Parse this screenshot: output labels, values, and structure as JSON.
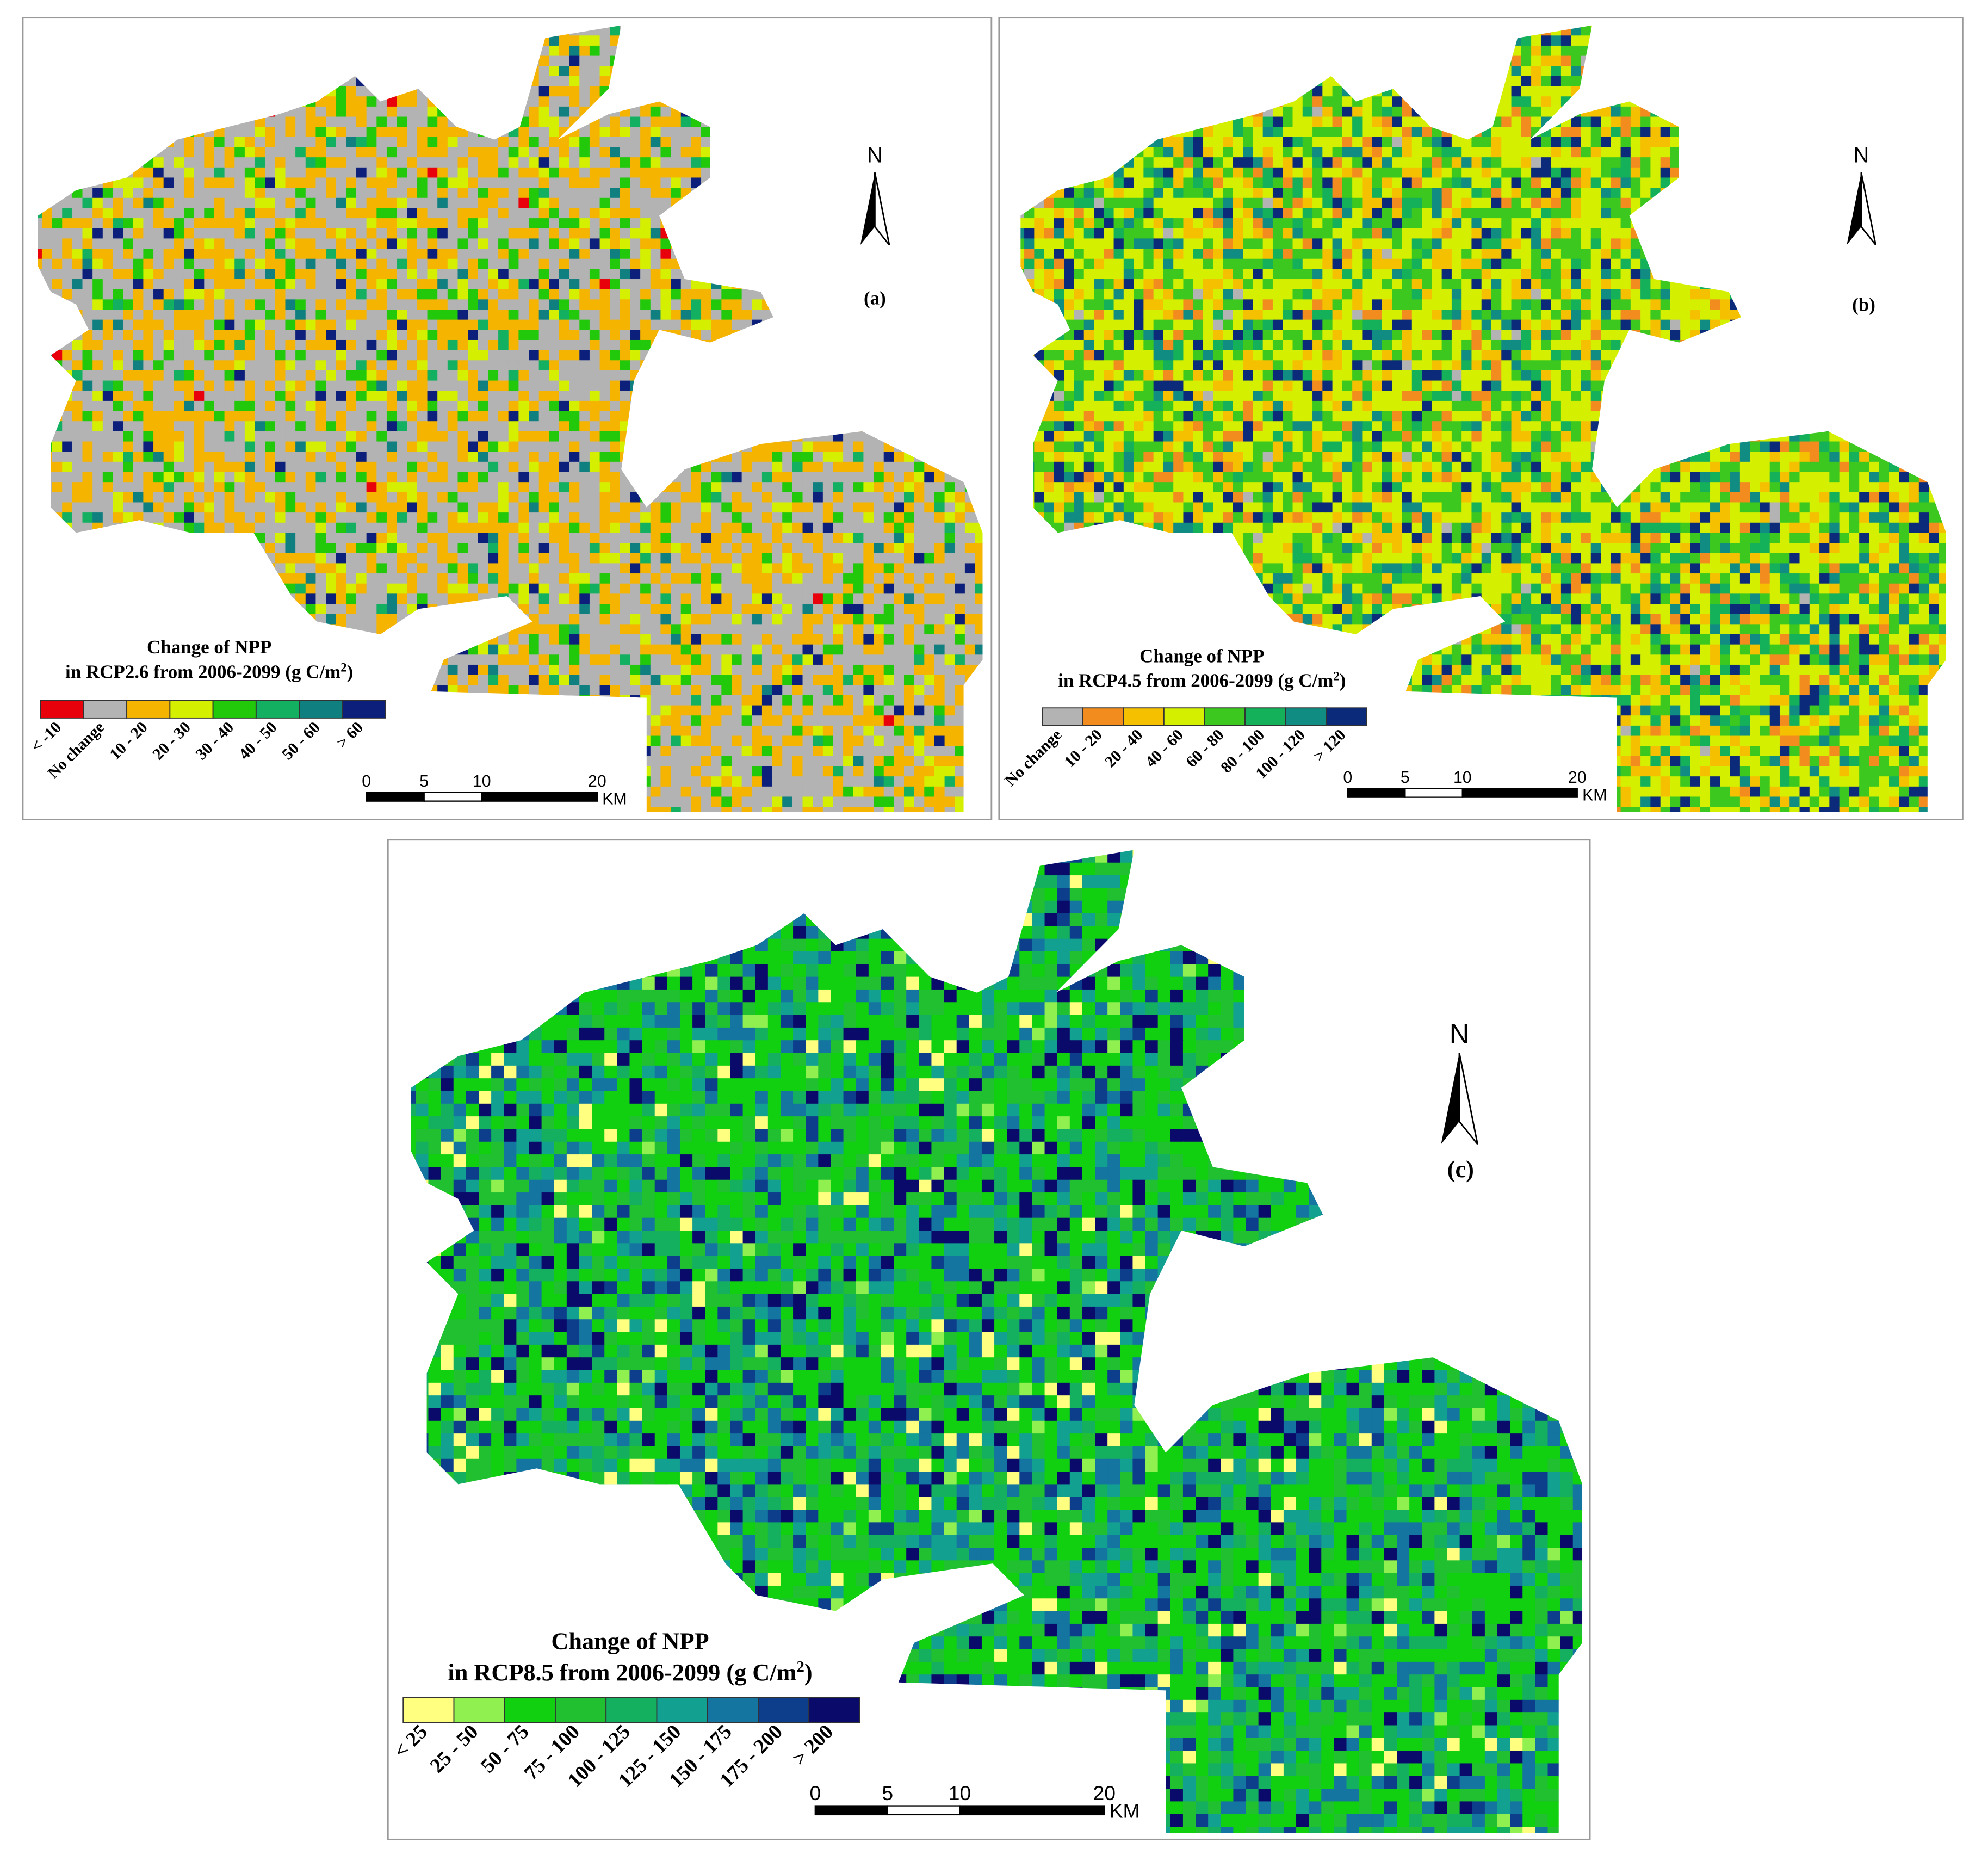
{
  "panels": [
    {
      "label": "(a)",
      "north": "N",
      "legend": {
        "title_line1": "Change of NPP",
        "title_line2": "in RCP2.6 from 2006-2099 (g C/m",
        "title_sup": "2",
        "title_end": ")",
        "classes": [
          {
            "label": "< -10",
            "color": "#e8000b"
          },
          {
            "label": "No change",
            "color": "#b3b3b3"
          },
          {
            "label": "10 - 20",
            "color": "#f5b400"
          },
          {
            "label": "20 - 30",
            "color": "#d4f000"
          },
          {
            "label": "30 - 40",
            "color": "#22c80a"
          },
          {
            "label": "40 - 50",
            "color": "#12b060"
          },
          {
            "label": "50 - 60",
            "color": "#0f7f7f"
          },
          {
            "label": "> 60",
            "color": "#0c1f7a"
          }
        ]
      },
      "scale_bar": {
        "ticks": [
          0,
          5,
          10,
          20
        ],
        "unit": "KM"
      }
    },
    {
      "label": "(b)",
      "north": "N",
      "legend": {
        "title_line1": "Change of NPP",
        "title_line2": "in RCP4.5 from 2006-2099 (g C/m",
        "title_sup": "2",
        "title_end": ")",
        "classes": [
          {
            "label": "No change",
            "color": "#b3b3b3"
          },
          {
            "label": "10 - 20",
            "color": "#f28c1e"
          },
          {
            "label": "20 - 40",
            "color": "#f5c000"
          },
          {
            "label": "40 - 60",
            "color": "#d4f000"
          },
          {
            "label": "60 - 80",
            "color": "#3cc81e"
          },
          {
            "label": "80 - 100",
            "color": "#14b05a"
          },
          {
            "label": "100 - 120",
            "color": "#108c82"
          },
          {
            "label": "> 120",
            "color": "#0c2a7a"
          }
        ]
      },
      "scale_bar": {
        "ticks": [
          0,
          5,
          10,
          20
        ],
        "unit": "KM"
      }
    },
    {
      "label": "(c)",
      "north": "N",
      "legend": {
        "title_line1": "Change of NPP",
        "title_line2": "in RCP8.5 from 2006-2099 (g C/m",
        "title_sup": "2",
        "title_end": ")",
        "classes": [
          {
            "label": "< 25",
            "color": "#ffff80"
          },
          {
            "label": "25 - 50",
            "color": "#90f050"
          },
          {
            "label": "50 - 75",
            "color": "#10d010"
          },
          {
            "label": "75 - 100",
            "color": "#20c030"
          },
          {
            "label": "100 - 125",
            "color": "#14b060"
          },
          {
            "label": "125 - 150",
            "color": "#12a090"
          },
          {
            "label": "150 - 175",
            "color": "#1475a0"
          },
          {
            "label": "175 - 200",
            "color": "#0c3e8c"
          },
          {
            "label": "> 200",
            "color": "#0a0a6a"
          }
        ]
      },
      "scale_bar": {
        "ticks": [
          0,
          5,
          10,
          20
        ],
        "unit": "KM"
      }
    }
  ]
}
